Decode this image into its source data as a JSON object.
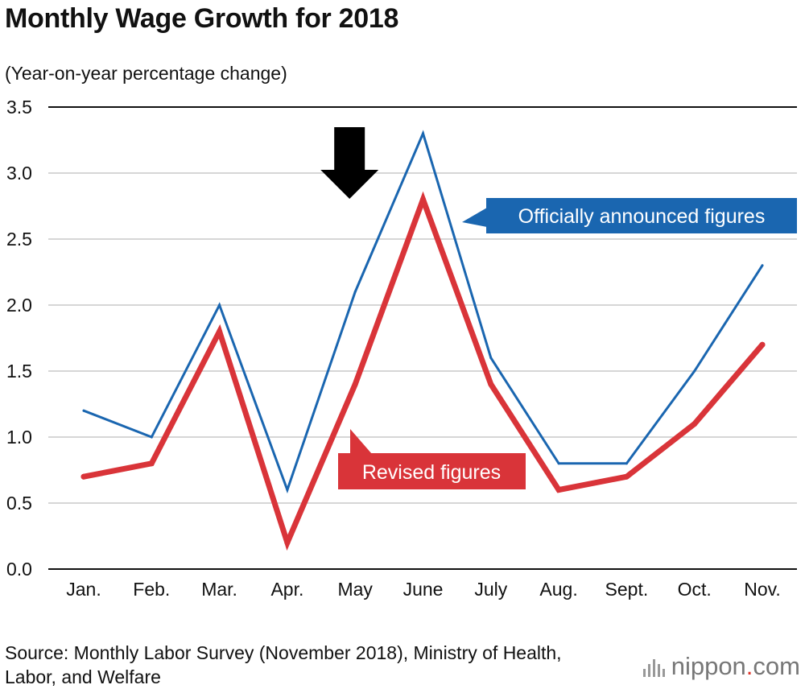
{
  "title": "Monthly Wage Growth for 2018",
  "subtitle": "(Year-on-year percentage change)",
  "source": "Source: Monthly Labor Survey (November 2018), Ministry of Health, Labor, and Welfare",
  "brand": {
    "name": "nippon",
    "dot": ".",
    "suffix": "com"
  },
  "chart_data": {
    "type": "line",
    "categories": [
      "Jan.",
      "Feb.",
      "Mar.",
      "Apr.",
      "May",
      "June",
      "July",
      "Aug.",
      "Sept.",
      "Oct.",
      "Nov."
    ],
    "ylim": [
      0,
      3.5
    ],
    "yticks": [
      0.0,
      0.5,
      1.0,
      1.5,
      2.0,
      2.5,
      3.0,
      3.5
    ],
    "ytick_labels": [
      "0.0",
      "0.5",
      "1.0",
      "1.5",
      "2.0",
      "2.5",
      "3.0",
      "3.5"
    ],
    "grid": true,
    "series": [
      {
        "name": "Officially announced figures",
        "color": "#1a66b0",
        "values": [
          1.2,
          1.0,
          2.0,
          0.6,
          2.1,
          3.3,
          1.6,
          0.8,
          0.8,
          1.5,
          2.3
        ]
      },
      {
        "name": "Revised figures",
        "color": "#d93439",
        "values": [
          0.7,
          0.8,
          1.8,
          0.2,
          1.4,
          2.8,
          1.4,
          0.6,
          0.7,
          1.1,
          1.7
        ]
      }
    ],
    "annotation": {
      "type": "down-arrow",
      "category": "May",
      "icon": "arrow-down-icon"
    }
  }
}
